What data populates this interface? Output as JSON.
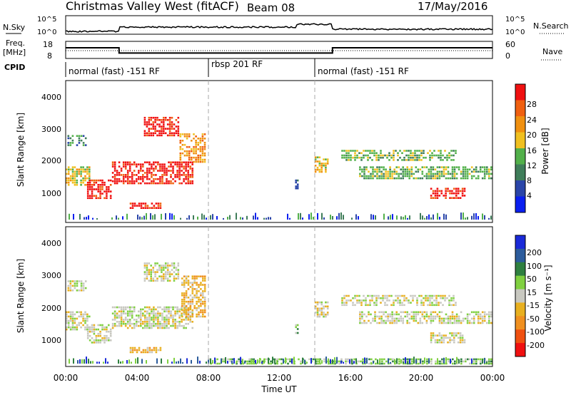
{
  "header": {
    "title": "Christmas Valley West (fitACF)",
    "beam": "Beam 08",
    "date": "17/May/2016"
  },
  "top_panels": {
    "nsky_label": "N.Sky",
    "nsky_ticks": [
      "10^5",
      "10^0"
    ],
    "nsearch_label": "N.Search",
    "nsearch_ticks": [
      "10^5",
      "10^0"
    ],
    "freq_label_1": "Freq.",
    "freq_label_2": "[MHz]",
    "freq_ticks": [
      "18",
      "8"
    ],
    "nave_label": "Nave",
    "nave_ticks": [
      "60",
      "0"
    ],
    "cpid_label": "CPID",
    "cpid_segments": [
      {
        "label": "normal (fast) -151 RF",
        "start_hour": 0,
        "end_hour": 8
      },
      {
        "label": "rbsp 201 RF",
        "start_hour": 8,
        "end_hour": 14
      },
      {
        "label": "normal (fast) -151 RF",
        "start_hour": 14,
        "end_hour": 24
      }
    ],
    "freq_series_mhz": [
      {
        "from_hour": 0,
        "to_hour": 3,
        "value": 14.5
      },
      {
        "from_hour": 3,
        "to_hour": 15,
        "value": 10.8
      },
      {
        "from_hour": 15,
        "to_hour": 24,
        "value": 14.5
      }
    ]
  },
  "x_axis": {
    "label": "Time UT",
    "ticks": [
      "00:00",
      "04:00",
      "08:00",
      "12:00",
      "16:00",
      "20:00",
      "00:00"
    ],
    "range_hours": [
      0,
      24
    ]
  },
  "colors": {
    "power": [
      "#0a1ff0",
      "#2a45a8",
      "#3f7d5a",
      "#52b04a",
      "#f0c020",
      "#f09010",
      "#f06010",
      "#f01010"
    ],
    "velocity": [
      "#1a2ad8",
      "#2c5c9c",
      "#2f8040",
      "#80d040",
      "#c8c8c0",
      "#e8b020",
      "#f09020",
      "#f05010",
      "#f01010"
    ],
    "gray_scatter": "#c8c8c0"
  },
  "chart_data": [
    {
      "type": "heatmap",
      "title": "Power",
      "ylabel": "Slant Range [km]",
      "y_ticks": [
        "1000",
        "2000",
        "3000",
        "4000"
      ],
      "ylim": [
        200,
        4500
      ],
      "colorbar_label": "Power [dB]",
      "colorbar_ticks": [
        "4",
        "8",
        "12",
        "16",
        "20",
        "24",
        "28"
      ],
      "scatter_regions": [
        {
          "t0": 0.0,
          "t1": 1.4,
          "r0": 1300,
          "r1": 1900,
          "level": 4
        },
        {
          "t0": 0.1,
          "t1": 1.2,
          "r0": 2500,
          "r1": 2850,
          "level": 2
        },
        {
          "t0": 1.2,
          "t1": 2.6,
          "r0": 900,
          "r1": 1500,
          "level": 7
        },
        {
          "t0": 2.6,
          "t1": 7.2,
          "r0": 1350,
          "r1": 2050,
          "level": 7
        },
        {
          "t0": 4.4,
          "t1": 6.4,
          "r0": 2800,
          "r1": 3400,
          "level": 7
        },
        {
          "t0": 6.4,
          "t1": 7.9,
          "r0": 2000,
          "r1": 2900,
          "level": 5
        },
        {
          "t0": 3.6,
          "t1": 5.4,
          "r0": 600,
          "r1": 800,
          "level": 7
        },
        {
          "t0": 14.0,
          "t1": 14.8,
          "r0": 1700,
          "r1": 2200,
          "level": 4
        },
        {
          "t0": 15.5,
          "t1": 22.0,
          "r0": 2050,
          "r1": 2400,
          "level": 3
        },
        {
          "t0": 16.5,
          "t1": 24.0,
          "r0": 1500,
          "r1": 1900,
          "level": 3
        },
        {
          "t0": 20.5,
          "t1": 22.5,
          "r0": 900,
          "r1": 1250,
          "level": 7
        },
        {
          "t0": 12.9,
          "t1": 13.1,
          "r0": 1200,
          "r1": 1500,
          "level": 1
        }
      ]
    },
    {
      "type": "heatmap",
      "title": "Velocity",
      "ylabel": "Slant Range [km]",
      "y_ticks": [
        "1000",
        "2000",
        "3000",
        "4000"
      ],
      "ylim": [
        200,
        4500
      ],
      "colorbar_label": "Velocity [m s⁻¹]",
      "colorbar_ticks": [
        "200",
        "100",
        "50",
        "15",
        "-15",
        "-50",
        "-100",
        "-200"
      ],
      "scatter_regions": [
        {
          "t0": 0.0,
          "t1": 1.4,
          "r0": 1300,
          "r1": 1900,
          "level": 4
        },
        {
          "t0": 0.1,
          "t1": 1.2,
          "r0": 2500,
          "r1": 2850,
          "level": 4
        },
        {
          "t0": 1.2,
          "t1": 2.6,
          "r0": 900,
          "r1": 1500,
          "level": 4
        },
        {
          "t0": 2.6,
          "t1": 7.2,
          "r0": 1350,
          "r1": 2050,
          "level": 4
        },
        {
          "t0": 4.4,
          "t1": 6.4,
          "r0": 2800,
          "r1": 3400,
          "level": 4
        },
        {
          "t0": 6.5,
          "t1": 7.9,
          "r0": 1700,
          "r1": 3000,
          "level": 5
        },
        {
          "t0": 3.6,
          "t1": 5.4,
          "r0": 600,
          "r1": 800,
          "level": 5
        },
        {
          "t0": 14.0,
          "t1": 14.8,
          "r0": 1700,
          "r1": 2200,
          "level": 4
        },
        {
          "t0": 15.5,
          "t1": 22.0,
          "r0": 2050,
          "r1": 2400,
          "level": 4
        },
        {
          "t0": 16.5,
          "t1": 24.0,
          "r0": 1500,
          "r1": 1900,
          "level": 4
        },
        {
          "t0": 20.5,
          "t1": 22.5,
          "r0": 900,
          "r1": 1250,
          "level": 4
        },
        {
          "t0": 12.9,
          "t1": 13.1,
          "r0": 1200,
          "r1": 1500,
          "level": 3
        },
        {
          "t0": 8.0,
          "t1": 24.0,
          "r0": 250,
          "r1": 450,
          "level": 3
        }
      ]
    }
  ]
}
